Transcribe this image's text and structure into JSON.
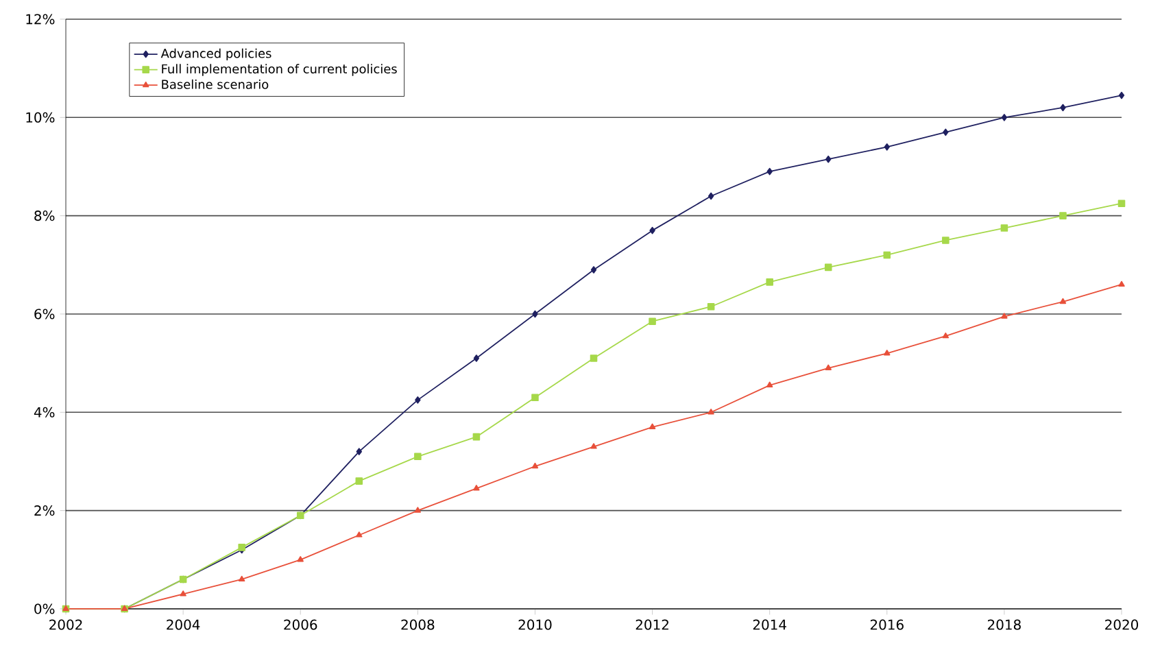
{
  "chart_data": {
    "type": "line",
    "x": [
      2002,
      2003,
      2004,
      2005,
      2006,
      2007,
      2008,
      2009,
      2010,
      2011,
      2012,
      2013,
      2014,
      2015,
      2016,
      2017,
      2018,
      2019,
      2020
    ],
    "series": [
      {
        "name": "Advanced policies",
        "color": "#1f2060",
        "marker": "diamond",
        "values": [
          0,
          0,
          0.6,
          1.2,
          1.9,
          3.2,
          4.25,
          5.1,
          6.0,
          6.9,
          7.7,
          8.4,
          8.9,
          9.15,
          9.4,
          9.7,
          10.0,
          10.2,
          10.45
        ]
      },
      {
        "name": "Full implementation of current policies",
        "color": "#a6d84a",
        "marker": "square",
        "values": [
          0,
          0,
          0.6,
          1.25,
          1.9,
          2.6,
          3.1,
          3.5,
          4.3,
          5.1,
          5.85,
          6.15,
          6.65,
          6.95,
          7.2,
          7.5,
          7.75,
          8.0,
          8.25
        ]
      },
      {
        "name": "Baseline scenario",
        "color": "#e8503a",
        "marker": "triangle",
        "values": [
          0,
          0,
          0.3,
          0.6,
          1.0,
          1.5,
          2.0,
          2.45,
          2.9,
          3.3,
          3.7,
          4.0,
          4.55,
          4.9,
          5.2,
          5.55,
          5.95,
          6.25,
          6.6
        ]
      }
    ],
    "xlim": [
      2002,
      2020
    ],
    "xticks": [
      2002,
      2004,
      2006,
      2008,
      2010,
      2012,
      2014,
      2016,
      2018,
      2020
    ],
    "ylim": [
      0,
      12
    ],
    "yticks": [
      {
        "value": 0,
        "label": "0%"
      },
      {
        "value": 2,
        "label": "2%"
      },
      {
        "value": 4,
        "label": "4%"
      },
      {
        "value": 6,
        "label": "6%"
      },
      {
        "value": 8,
        "label": "8%"
      },
      {
        "value": 10,
        "label": "10%"
      },
      {
        "value": 12,
        "label": "12%"
      }
    ],
    "grid": "y",
    "legend": "top left",
    "line_style": "solid"
  }
}
